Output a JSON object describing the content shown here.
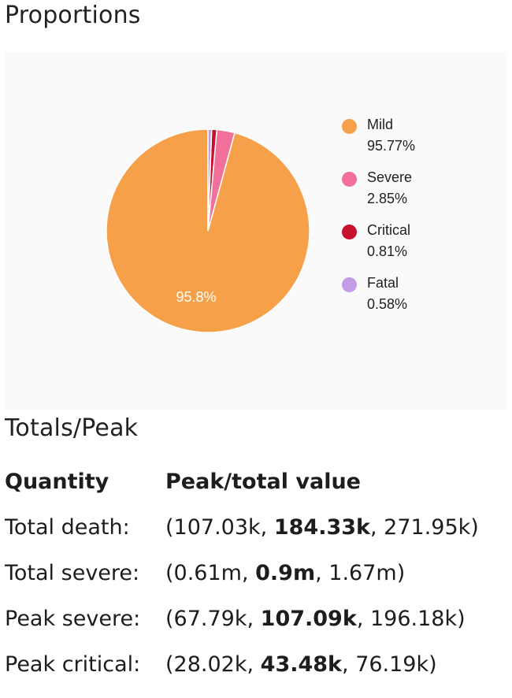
{
  "sections": {
    "proportions_title": "Proportions",
    "totals_title": "Totals/Peak"
  },
  "chart_data": {
    "type": "pie",
    "slice_label": "95.8%",
    "slices": [
      {
        "name": "Mild",
        "value": 95.77,
        "pct_label": "95.77%",
        "color": "#f7a04a"
      },
      {
        "name": "Severe",
        "value": 2.85,
        "pct_label": "2.85%",
        "color": "#f0709a"
      },
      {
        "name": "Critical",
        "value": 0.81,
        "pct_label": "0.81%",
        "color": "#c8102e"
      },
      {
        "name": "Fatal",
        "value": 0.58,
        "pct_label": "0.58%",
        "color": "#c39be6"
      }
    ],
    "legend_position": "right"
  },
  "table": {
    "headers": {
      "quantity": "Quantity",
      "value": "Peak/total value"
    },
    "rows": [
      {
        "label": "Total death:",
        "open": "(",
        "low": "107.03k",
        "sep1": ", ",
        "mid": "184.33k",
        "sep2": ", ",
        "high": "271.95k",
        "close": ")"
      },
      {
        "label": "Total severe:",
        "open": "(",
        "low": "0.61m",
        "sep1": ", ",
        "mid": "0.9m",
        "sep2": ", ",
        "high": "1.67m",
        "close": ")"
      },
      {
        "label": "Peak severe:",
        "open": "(",
        "low": "67.79k",
        "sep1": ", ",
        "mid": "107.09k",
        "sep2": ", ",
        "high": "196.18k",
        "close": ")"
      },
      {
        "label": "Peak critical:",
        "open": "(",
        "low": "28.02k",
        "sep1": ", ",
        "mid": "43.48k",
        "sep2": ", ",
        "high": "76.19k",
        "close": ")"
      }
    ]
  }
}
